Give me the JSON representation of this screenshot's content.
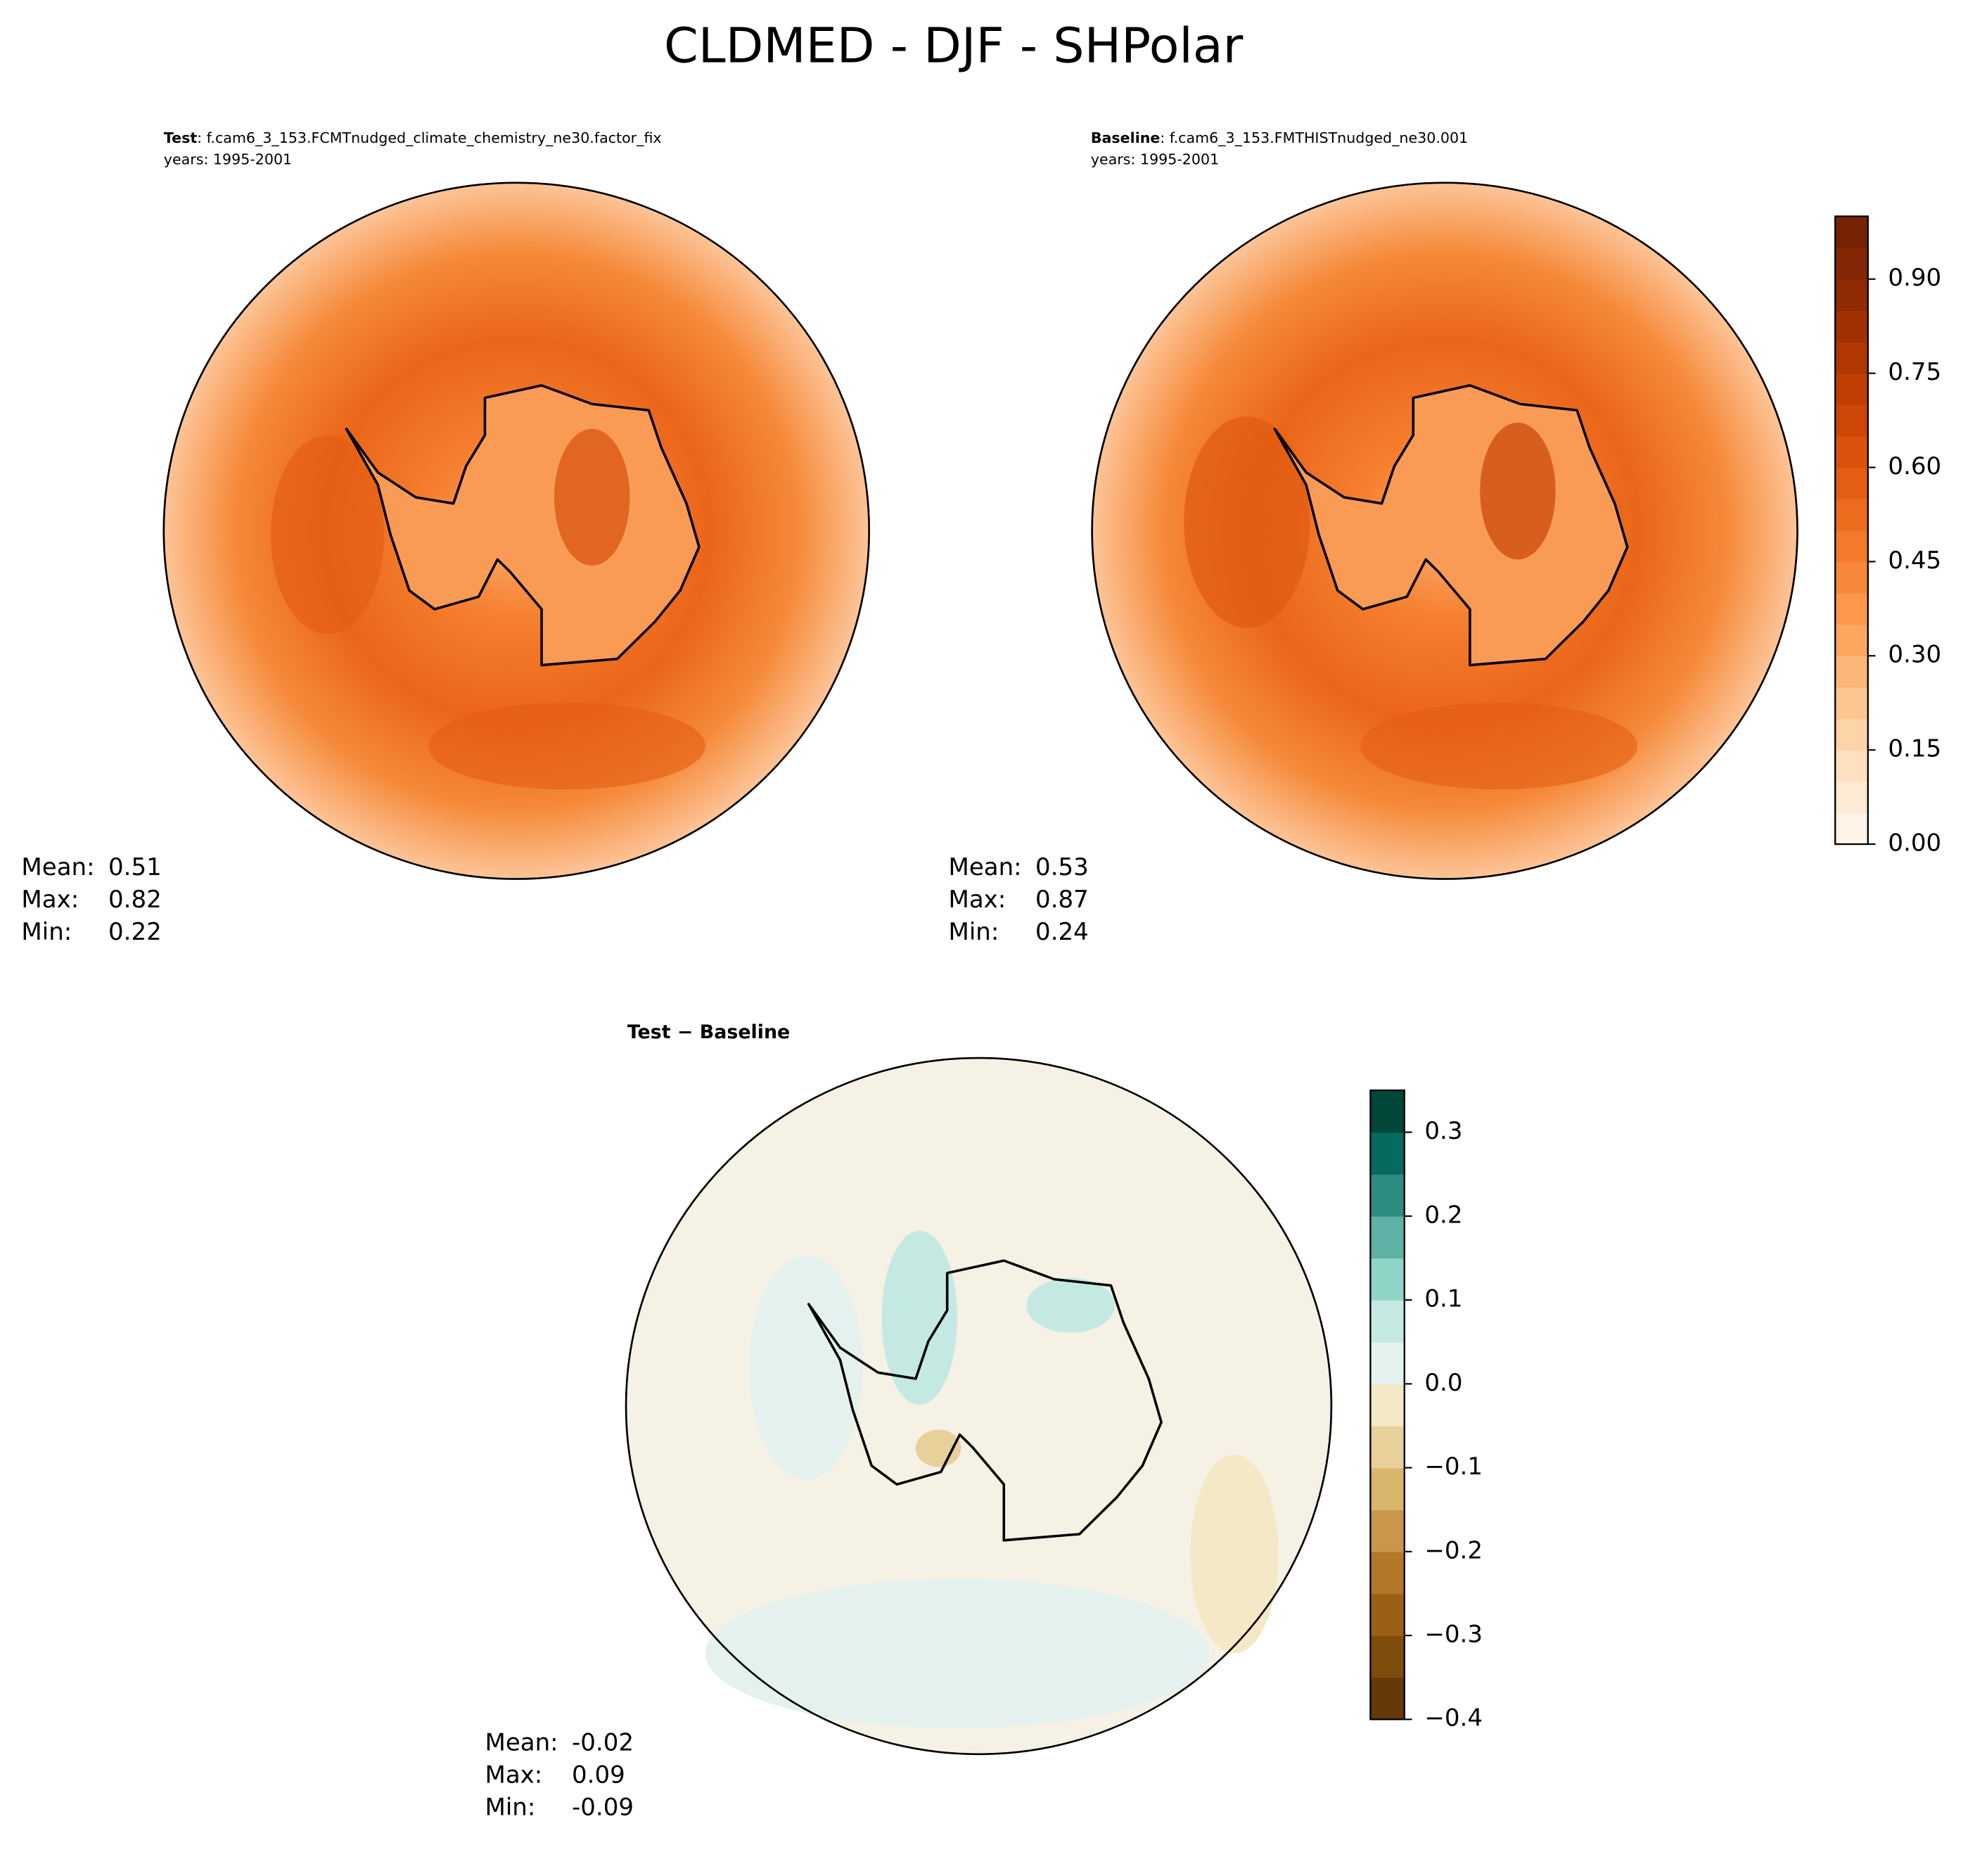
{
  "title": "CLDMED - DJF - SHPolar",
  "chart_data": [
    {
      "type": "map",
      "title_bold": "Test",
      "title": ": f.cam6_3_153.FCMTnudged_climate_chemistry_ne30.factor_fix",
      "subtitle": "years: 1995-2001",
      "stats": [
        {
          "label": "Mean:",
          "value": 0.51
        },
        {
          "label": "Max:",
          "value": 0.82
        },
        {
          "label": "Min:",
          "value": 0.22
        }
      ]
    },
    {
      "type": "map",
      "title_bold": "Baseline",
      "title": ": f.cam6_3_153.FMTHISTnudged_ne30.001",
      "subtitle": "years: 1995-2001",
      "stats": [
        {
          "label": "Mean:",
          "value": 0.53
        },
        {
          "label": "Max:",
          "value": 0.87
        },
        {
          "label": "Min:",
          "value": 0.24
        }
      ],
      "colorbar": {
        "ylim": [
          0,
          1.0
        ],
        "yticks": [
          {
            "value": 0,
            "label": "0.00"
          },
          0.15,
          {
            "value": 0.3,
            "label": "0.30"
          },
          0.45,
          {
            "value": 0.6,
            "label": "0.60"
          },
          0.75,
          {
            "value": 0.9,
            "label": "0.90"
          }
        ],
        "colors": [
          "#fff4e8",
          "#feead5",
          "#fee0c1",
          "#fdd3a8",
          "#fdc590",
          "#fdb678",
          "#fda660",
          "#fc974c",
          "#f88839",
          "#f37a2a",
          "#ed6b1c",
          "#e45e13",
          "#da520b",
          "#ce4706",
          "#c13e03",
          "#b13703",
          "#a13103",
          "#912b04",
          "#832604",
          "#762204"
        ]
      }
    },
    {
      "type": "map",
      "title_bold": "Test − Baseline",
      "stats": [
        {
          "label": "Mean:",
          "value": -0.02
        },
        {
          "label": "Max:",
          "value": 0.09
        },
        {
          "label": "Min:",
          "value": -0.09
        }
      ],
      "colorbar": {
        "ylim": [
          -0.4,
          0.35
        ],
        "yticks": [
          {
            "value": -0.4,
            "label": "−0.4"
          },
          {
            "value": -0.3,
            "label": "−0.3"
          },
          {
            "value": -0.2,
            "label": "−0.2"
          },
          {
            "value": -0.1,
            "label": "−0.1"
          },
          {
            "value": 0,
            "label": "0.0"
          },
          0.1,
          0.2,
          0.3
        ],
        "colors": [
          "#633a08",
          "#7e4c0b",
          "#9a6015",
          "#b47628",
          "#c9964b",
          "#d9b56c",
          "#e8d09a",
          "#f4e8c6",
          "#e5f1ee",
          "#c4e9e2",
          "#90d4c8",
          "#5db2a5",
          "#2d8c80",
          "#066b5e",
          "#01473a"
        ]
      }
    }
  ]
}
